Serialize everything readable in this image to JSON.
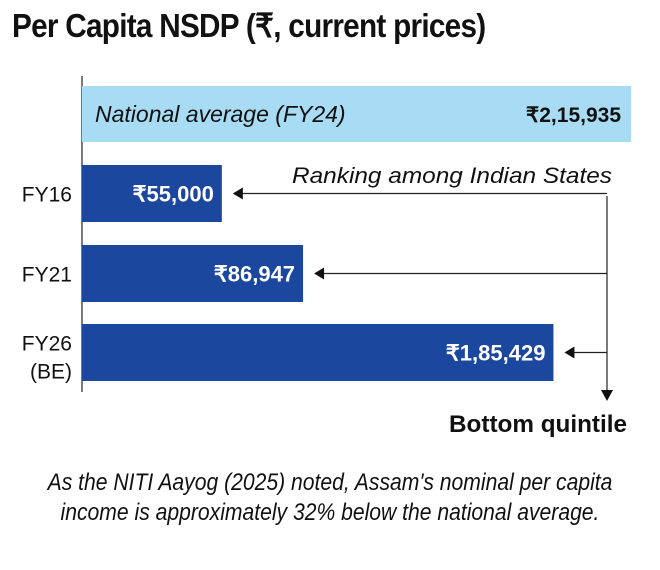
{
  "chart_data": {
    "type": "bar",
    "orientation": "horizontal",
    "title": "Per Capita NSDP (₹, current prices)",
    "reference": {
      "label": "National average (FY24)",
      "value": 215935,
      "value_label": "₹2,15,935",
      "color": "#a8dcf4"
    },
    "categories": [
      "FY16",
      "FY21",
      "FY26"
    ],
    "category_sublabels": [
      "",
      "",
      "(BE)"
    ],
    "values": [
      55000,
      86947,
      185429
    ],
    "value_labels": [
      "₹55,000",
      "₹86,947",
      "₹1,85,429"
    ],
    "bar_color": "#1c479e",
    "annotation": {
      "label": "Ranking among Indian States",
      "result": "Bottom quintile"
    },
    "xlim": [
      0,
      215935
    ]
  },
  "caption": "As the NITI Aayog (2025) noted, Assam's nominal per capita income is approximately 32% below the national average."
}
